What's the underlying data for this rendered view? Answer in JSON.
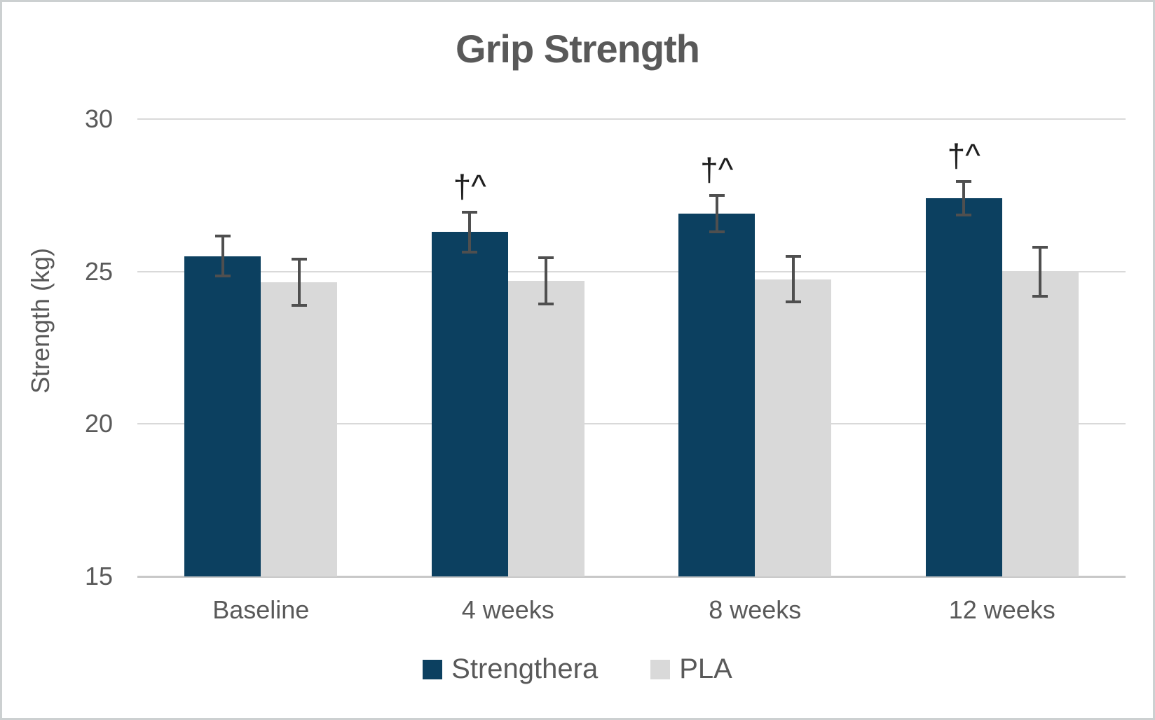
{
  "chart_data": {
    "type": "bar",
    "title": "Grip Strength",
    "ylabel": "Strength (kg)",
    "xlabel": "",
    "ylim": [
      15,
      30
    ],
    "yticks": [
      30,
      25,
      20,
      15
    ],
    "categories": [
      "Baseline",
      "4 weeks",
      "8 weeks",
      "12 weeks"
    ],
    "series": [
      {
        "name": "Strengthera",
        "color": "#0c4060",
        "values": [
          25.5,
          26.3,
          26.9,
          27.4
        ],
        "errors": [
          0.7,
          0.7,
          0.65,
          0.6
        ],
        "annotations": [
          "",
          "†^",
          "†^",
          "†^"
        ]
      },
      {
        "name": "PLA",
        "color": "#d9d9d9",
        "values": [
          24.65,
          24.7,
          24.75,
          25.0
        ],
        "errors": [
          0.8,
          0.8,
          0.8,
          0.85
        ],
        "annotations": [
          "",
          "",
          "",
          ""
        ]
      }
    ],
    "legend_position": "bottom",
    "grid": true,
    "colors": {
      "text": "#595959",
      "gridline": "#d9d9d9",
      "axis_line": "#c8c8c8",
      "error_bar": "#4f4f4f",
      "annotation": "#1f1f1f"
    }
  }
}
